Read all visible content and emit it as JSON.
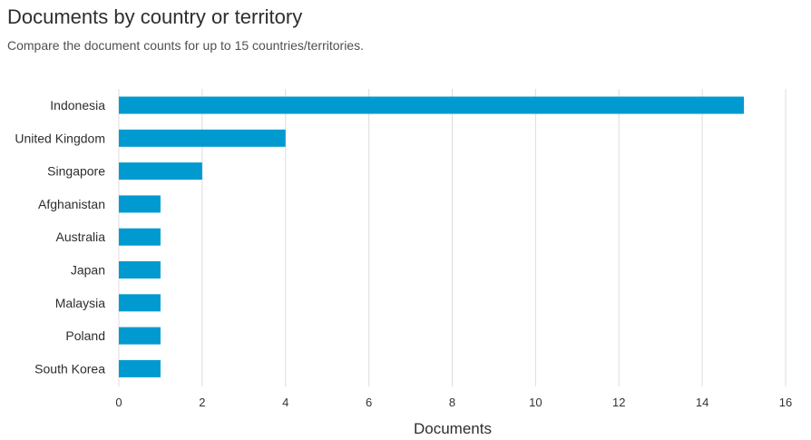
{
  "header": {
    "title": "Documents by country or territory",
    "subtitle": "Compare the document counts for up to 15 countries/territories."
  },
  "chart_data": {
    "type": "bar",
    "orientation": "horizontal",
    "categories": [
      "Indonesia",
      "United Kingdom",
      "Singapore",
      "Afghanistan",
      "Australia",
      "Japan",
      "Malaysia",
      "Poland",
      "South Korea"
    ],
    "values": [
      15,
      4,
      2,
      1,
      1,
      1,
      1,
      1,
      1
    ],
    "xlabel": "Documents",
    "ylabel": "",
    "xlim": [
      0,
      16
    ],
    "xticks": [
      "0",
      "2",
      "4",
      "6",
      "8",
      "10",
      "12",
      "14",
      "16"
    ],
    "grid": true,
    "bar_color": "#009ad0",
    "grid_color": "#dddddd"
  }
}
